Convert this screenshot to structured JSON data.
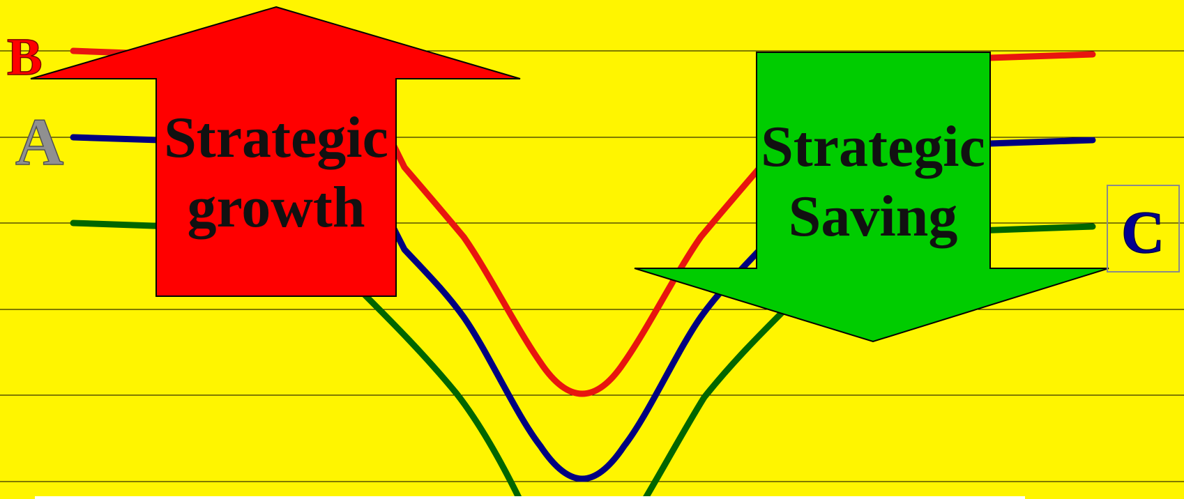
{
  "colors": {
    "background": "#FFF500",
    "grid": "#000000",
    "curve_b": "#E8150F",
    "curve_a": "#000080",
    "curve_c": "#006600",
    "growth_arrow": "#FF0000",
    "saving_arrow": "#00CC00",
    "label_b": "#FF0000",
    "label_a": "#909090",
    "label_c": "#000090",
    "bottom_bar": "#FFFFFF"
  },
  "labels": {
    "b": "B",
    "a": "A",
    "c": "C"
  },
  "growth_arrow": {
    "line1": "Strategic",
    "line2": "growth",
    "icon": "up-arrow-icon"
  },
  "saving_arrow": {
    "line1": "Strategic",
    "line2": "Saving",
    "icon": "down-arrow-icon"
  },
  "curves": [
    {
      "id": "B",
      "color_key": "curve_b"
    },
    {
      "id": "A",
      "color_key": "curve_a"
    },
    {
      "id": "C",
      "color_key": "curve_c"
    }
  ]
}
